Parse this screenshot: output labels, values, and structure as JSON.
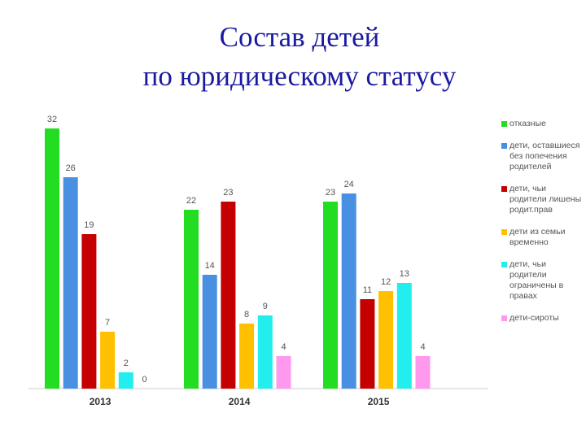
{
  "chart_data": {
    "type": "bar",
    "title": "Состав детей\nпо юридическому статусу",
    "categories": [
      "2013",
      "2014",
      "2015"
    ],
    "series": [
      {
        "name": "отказные",
        "color": "#22dd22",
        "values": [
          32,
          22,
          23
        ]
      },
      {
        "name": "дети, оставшиеся без попечения родителей",
        "color": "#4a90e2",
        "values": [
          26,
          14,
          24
        ]
      },
      {
        "name": "дети, чьи родители лишены родит.прав",
        "color": "#c40000",
        "values": [
          19,
          23,
          11
        ]
      },
      {
        "name": "дети из семьи временно",
        "color": "#ffc000",
        "values": [
          7,
          8,
          12
        ]
      },
      {
        "name": "дети, чьи родители ограничены в правах",
        "color": "#22eeee",
        "values": [
          2,
          9,
          13
        ]
      },
      {
        "name": "дети-сироты",
        "color": "#ff99ee",
        "values": [
          0,
          4,
          4
        ]
      }
    ],
    "ylim": [
      0,
      32
    ],
    "legend": "right"
  }
}
